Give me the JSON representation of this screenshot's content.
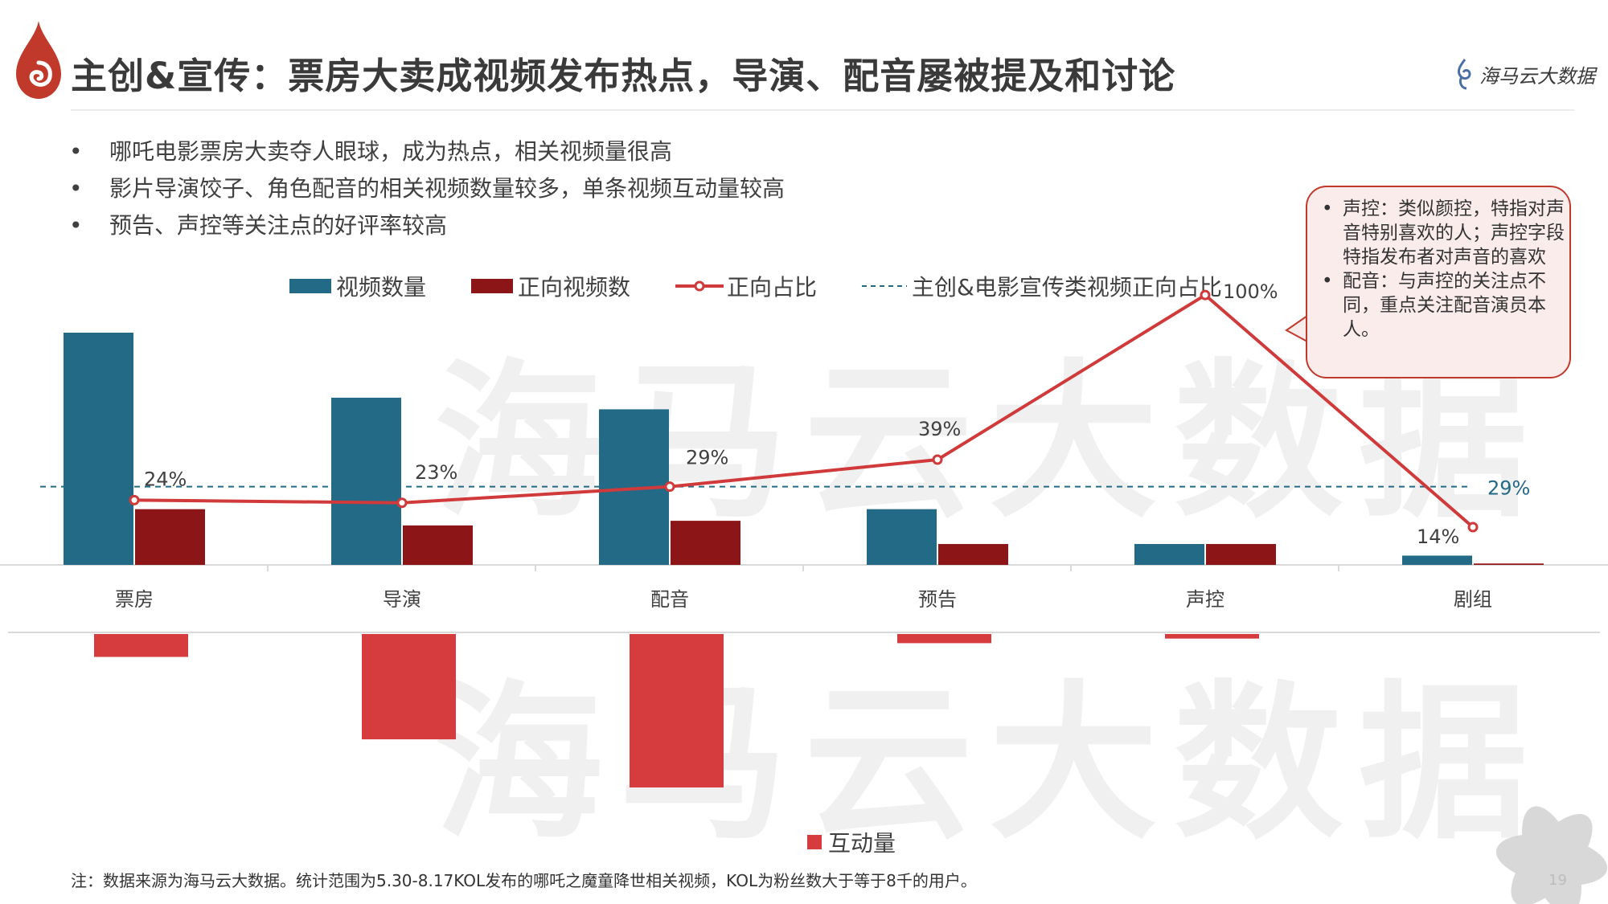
{
  "header": {
    "title": "主创&宣传：票房大卖成视频发布热点，导演、配音屡被提及和讨论",
    "brand": "海马云大数据"
  },
  "watermark": "海马云大数据",
  "bullets": [
    "哪吒电影票房大卖夺人眼球，成为热点，相关视频量很高",
    "影片导演饺子、角色配音的相关视频数量较多，单条视频互动量较高",
    "预告、声控等关注点的好评率较高"
  ],
  "callout": {
    "items": [
      "声控：类似颜控，特指对声音特别喜欢的人；声控字段特指发布者对声音的喜欢",
      "配音：与声控的关注点不同，重点关注配音演员本人。"
    ]
  },
  "legend": {
    "video_count": "视频数量",
    "positive_videos": "正向视频数",
    "positive_ratio": "正向占比",
    "baseline": "主创&电影宣传类视频正向占比"
  },
  "chart_data": {
    "type": "bar+line",
    "categories": [
      "票房",
      "导演",
      "配音",
      "预告",
      "声控",
      "剧组"
    ],
    "series": [
      {
        "name": "视频数量",
        "kind": "bar",
        "color": "#236a87",
        "values": [
          100,
          72,
          67,
          24,
          9,
          4
        ]
      },
      {
        "name": "正向视频数",
        "kind": "bar",
        "color": "#8b1517",
        "values": [
          24,
          17,
          19,
          9,
          9,
          0.6
        ]
      },
      {
        "name": "正向占比",
        "kind": "line",
        "axis": "secondary",
        "color": "#d03a3a",
        "values": [
          24,
          23,
          29,
          39,
          100,
          14
        ],
        "labels": [
          "24%",
          "23%",
          "29%",
          "39%",
          "100%",
          "14%"
        ]
      },
      {
        "name": "主创&电影宣传类视频正向占比",
        "kind": "dashed-line",
        "axis": "secondary",
        "color": "#236a87",
        "value": 29,
        "label": "29%"
      },
      {
        "name": "互动量",
        "kind": "bar",
        "direction": "down",
        "color": "#d63b3d",
        "values": [
          10,
          46,
          67,
          4,
          2,
          0
        ]
      }
    ],
    "primary_ylim": [
      0,
      100
    ],
    "secondary_ylim": [
      0,
      120
    ],
    "interaction_ylim": [
      0,
      100
    ]
  },
  "legend2": {
    "interaction": "互动量"
  },
  "footnote": "注：数据来源为海马云大数据。统计范围为5.30-8.17KOL发布的哪吒之魔童降世相关视频，KOL为粉丝数大于等于8千的用户。",
  "page_number": "19"
}
